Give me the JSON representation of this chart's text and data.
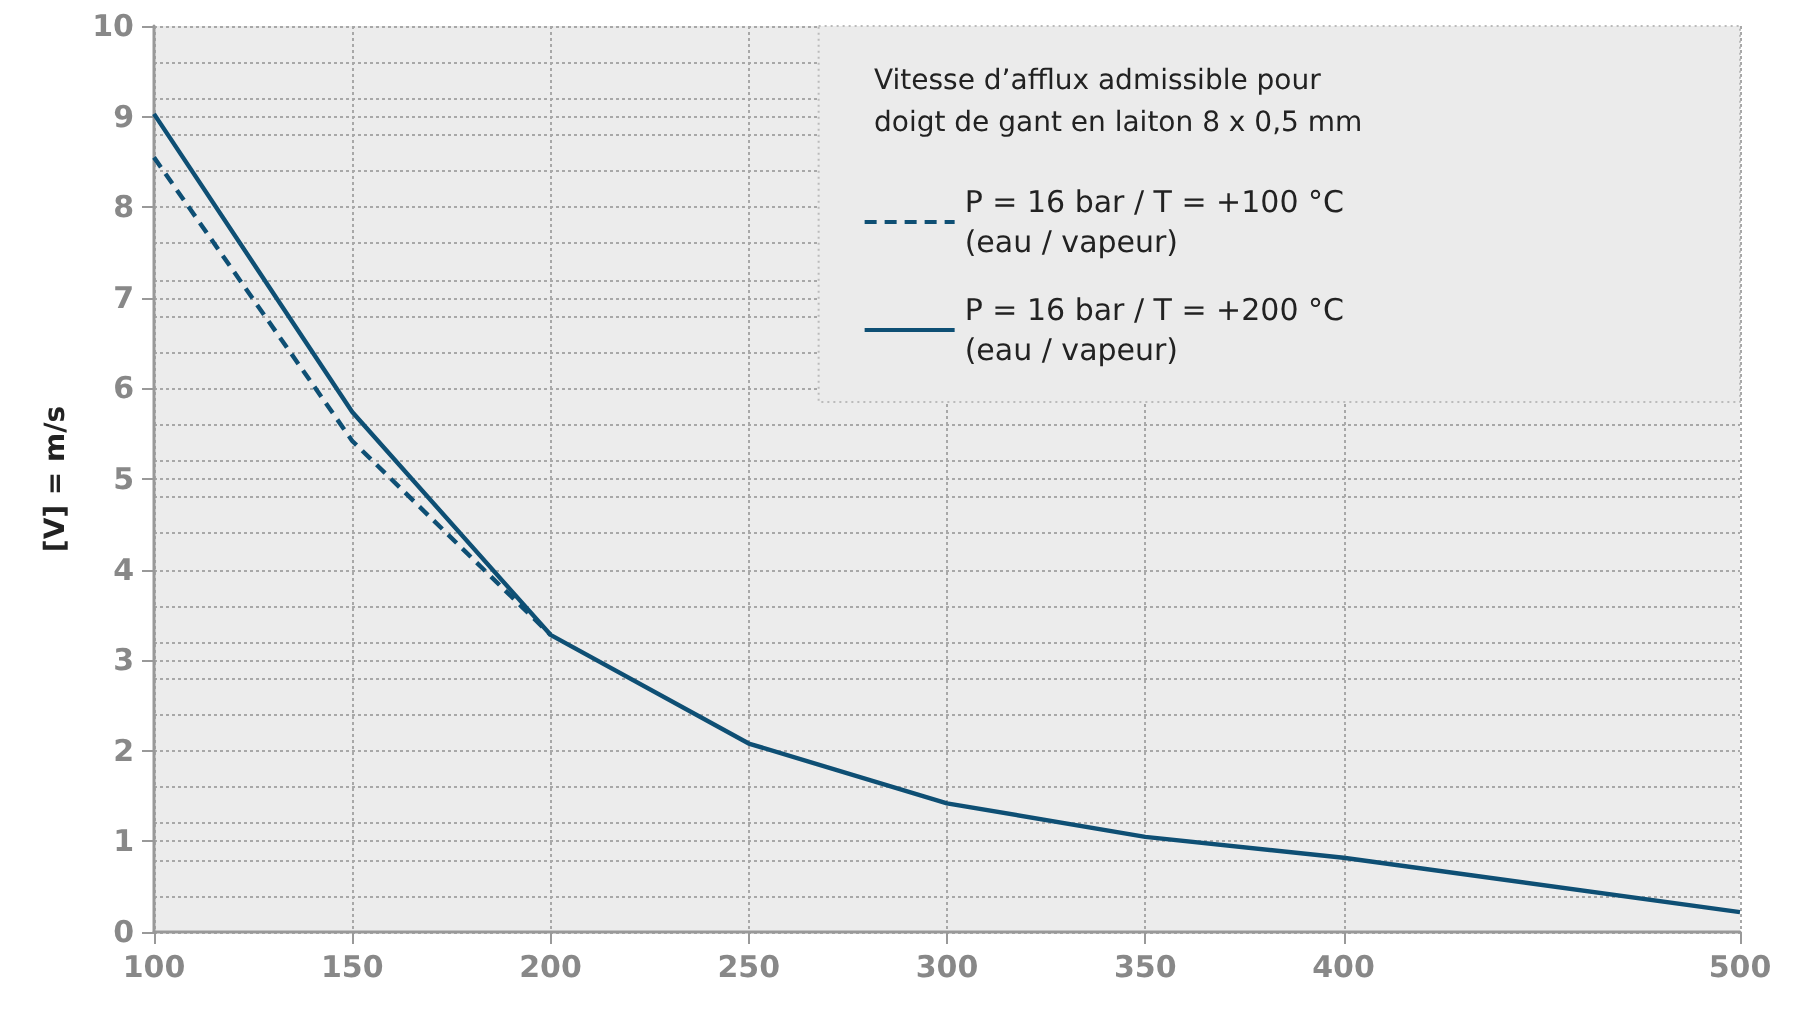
{
  "chart_data": {
    "type": "line",
    "legend_title": "Vitesse d’afflux admissible pour\ndoigt de gant en laiton 8 x 0,5 mm",
    "ylabel": "[V] = m/s",
    "xlim": [
      100,
      500
    ],
    "xticks": [
      100,
      150,
      200,
      250,
      300,
      350,
      400,
      500
    ],
    "ylim": [
      0,
      10
    ],
    "yticks": [
      0,
      1,
      2,
      3,
      4,
      5,
      6,
      7,
      8,
      9,
      10
    ],
    "series": [
      {
        "name": "P = 16 bar / T = +100 °C (eau / vapeur)",
        "color": "#0e4f74",
        "line_style": "dashed",
        "x": [
          100,
          150,
          200
        ],
        "values": [
          8.55,
          5.42,
          3.28
        ]
      },
      {
        "name": "P = 16 bar / T = +200 °C (eau / vapeur)",
        "color": "#0e4f74",
        "line_style": "solid",
        "x": [
          100,
          150,
          200,
          250,
          300,
          350,
          400,
          500
        ],
        "values": [
          9.03,
          5.74,
          3.28,
          2.08,
          1.42,
          1.05,
          0.82,
          0.22
        ]
      }
    ],
    "grid": true,
    "legend": "top right",
    "marker": "none"
  }
}
